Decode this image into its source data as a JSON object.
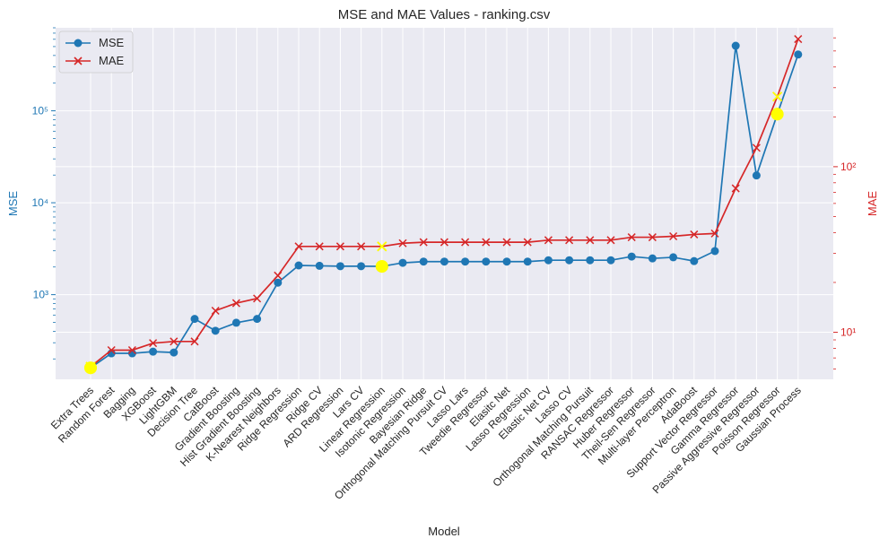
{
  "chart_data": {
    "type": "line",
    "title": "MSE and MAE Values - ranking.csv",
    "xlabel": "Model",
    "categories": [
      "Extra Trees",
      "Random Forest",
      "Bagging",
      "XGBoost",
      "LightGBM",
      "Decision Tree",
      "CatBoost",
      "Gradient Boosting",
      "Hist Gradient Boosting",
      "K-Nearest Neighbors",
      "Ridge Regression",
      "Ridge CV",
      "ARD Regression",
      "Lars CV",
      "Linear Regression",
      "Isotonic Regression",
      "Bayesian Ridge",
      "Orthogonal Matching Pursuit CV",
      "Lasso Lars",
      "Tweedie Regressor",
      "Elasitc Net",
      "Lasso Regression",
      "Elastic Net CV",
      "Lasso CV",
      "Orthogonal Matching Pursuit",
      "RANSAC Regressor",
      "Huber Regressor",
      "Theil-Sen Regressor",
      "Multi-layer Perceptron",
      "AdaBoost",
      "Support Vector Regressor",
      "Gamma Regressor",
      "Passive Aggressive Regressor",
      "Poisson Regressor",
      "Gaussian Process"
    ],
    "left_axis": {
      "label": "MSE",
      "scale": "log",
      "range": [
        120,
        800000
      ],
      "ticks": [
        {
          "v": 1000,
          "label": "10³"
        },
        {
          "v": 10000,
          "label": "10⁴"
        },
        {
          "v": 100000,
          "label": "10⁵"
        }
      ],
      "color": "#1f77b4"
    },
    "right_axis": {
      "label": "MAE",
      "scale": "log",
      "range": [
        5.2,
        690
      ],
      "ticks": [
        {
          "v": 10,
          "label": "10¹"
        },
        {
          "v": 100,
          "label": "10²"
        }
      ],
      "color": "#d62728"
    },
    "series": [
      {
        "name": "MSE",
        "axis": "left",
        "marker": "circle",
        "color": "#1f77b4",
        "values": [
          160,
          230,
          230,
          240,
          235,
          545,
          405,
          495,
          545,
          1350,
          2080,
          2060,
          2040,
          2040,
          2030,
          2220,
          2290,
          2290,
          2290,
          2290,
          2290,
          2290,
          2370,
          2370,
          2370,
          2370,
          2600,
          2480,
          2550,
          2320,
          2980,
          510000,
          19800,
          92000,
          410000
        ]
      },
      {
        "name": "MAE",
        "axis": "right",
        "marker": "x",
        "color": "#d62728",
        "values": [
          6.2,
          7.8,
          7.8,
          8.6,
          8.8,
          8.8,
          13.5,
          15,
          16,
          22,
          33,
          33,
          33,
          33,
          33,
          34.5,
          35,
          35,
          35,
          35,
          35,
          35,
          36,
          36,
          36,
          36,
          37.5,
          37.5,
          38,
          39,
          39.5,
          74,
          130,
          265,
          590
        ]
      }
    ],
    "highlights": [
      {
        "series": "MSE",
        "category": "Extra Trees",
        "value": 160,
        "color": "#ffff00"
      },
      {
        "series": "MSE",
        "category": "Linear Regression",
        "value": 2030,
        "color": "#ffff00"
      },
      {
        "series": "MSE",
        "category": "Poisson Regressor",
        "value": 92000,
        "color": "#ffff00"
      },
      {
        "series": "MAE",
        "category": "Extra Trees",
        "value": 6.2,
        "color": "#ffff00"
      },
      {
        "series": "MAE",
        "category": "Linear Regression",
        "value": 33,
        "color": "#ffff00"
      },
      {
        "series": "MAE",
        "category": "Poisson Regressor",
        "value": 265,
        "color": "#ffff00"
      }
    ],
    "grid": true,
    "legend": "top-left"
  }
}
